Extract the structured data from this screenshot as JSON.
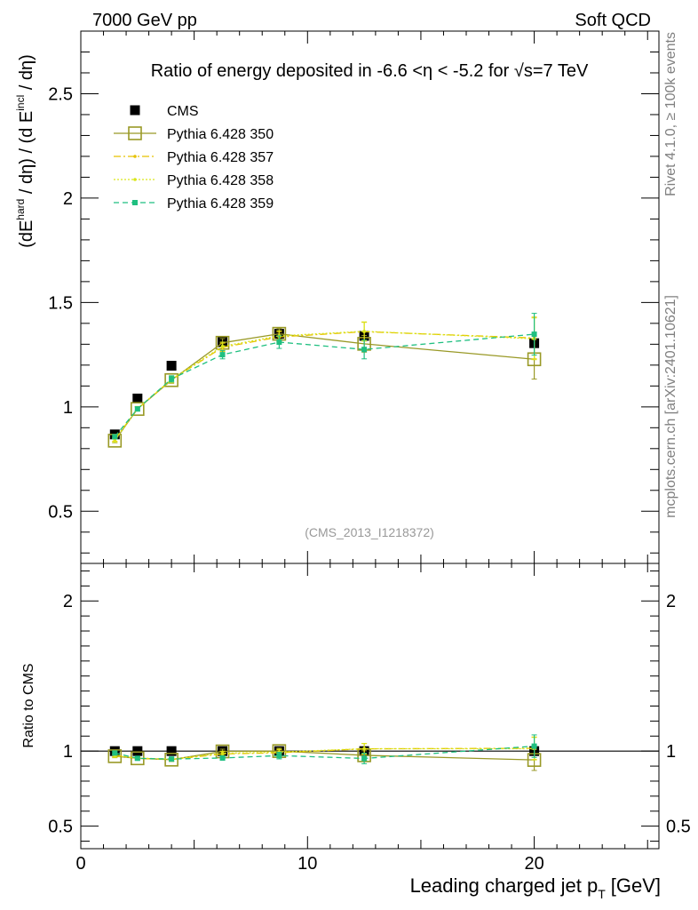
{
  "header": {
    "left": "7000 GeV pp",
    "right": "Soft QCD",
    "side_top": "Rivet 4.1.0, ≥ 100k events",
    "side_bottom": "mcplots.cern.ch [arXiv:2401.10621]"
  },
  "chart_data": {
    "type": "line",
    "title": "Ratio of energy deposited in -6.6 <η < -5.2 for √s=7 TeV",
    "watermark": "(CMS_2013_I1218372)",
    "xlabel": "Leading charged jet p_T [GeV]",
    "xlabel_main": "Leading charged jet p",
    "xlabel_sub": "T",
    "xlabel_unit": "[GeV]",
    "ylabel": "(dE^hard / dη) / (d E^incl / dη)",
    "ylabel_parts": [
      "(dE",
      "hard",
      " / dη) / (d E",
      "incl",
      " / dη)"
    ],
    "ratio_ylabel": "Ratio to CMS",
    "xlim": [
      0,
      25.5
    ],
    "ylim": [
      0.25,
      2.8
    ],
    "ratio_ylim": [
      0.35,
      2.25
    ],
    "x_ticks": [
      {
        "v": 0,
        "label": "0"
      },
      {
        "v": 10,
        "label": "10"
      },
      {
        "v": 20,
        "label": "20"
      }
    ],
    "y_ticks": [
      {
        "v": 0.5,
        "label": "0.5"
      },
      {
        "v": 1,
        "label": "1"
      },
      {
        "v": 1.5,
        "label": "1.5"
      },
      {
        "v": 2,
        "label": "2"
      },
      {
        "v": 2.5,
        "label": "2.5"
      }
    ],
    "ratio_y_ticks": [
      {
        "v": 0.5,
        "label": "0.5"
      },
      {
        "v": 1,
        "label": "1"
      },
      {
        "v": 2,
        "label": "2"
      }
    ],
    "series": [
      {
        "name": "CMS",
        "style": "data",
        "color": "#000000",
        "x": [
          1.5,
          2.5,
          4.0,
          6.25,
          8.75,
          12.5,
          20.0
        ],
        "y": [
          0.868,
          1.04,
          1.197,
          1.31,
          1.35,
          1.34,
          1.305
        ],
        "err": [
          0.01,
          0.01,
          0.01,
          0.01,
          0.01,
          0.01,
          0.01
        ],
        "ratio": [
          1,
          1,
          1,
          1,
          1,
          1,
          1
        ],
        "ratio_err": [
          0.01,
          0.01,
          0.01,
          0.01,
          0.01,
          0.01,
          0.01
        ]
      },
      {
        "name": "Pythia 6.428 350",
        "style": "open-square",
        "color": "#999926",
        "x": [
          1.5,
          2.5,
          4.0,
          6.25,
          8.75,
          12.5,
          20.0
        ],
        "y": [
          0.838,
          0.99,
          1.128,
          1.307,
          1.35,
          1.302,
          1.228
        ],
        "err": [
          0.01,
          0.01,
          0.015,
          0.02,
          0.025,
          0.04,
          0.095
        ],
        "ratio": [
          0.966,
          0.952,
          0.943,
          0.998,
          1.0,
          0.972,
          0.941
        ],
        "ratio_err": [
          0.01,
          0.01,
          0.012,
          0.015,
          0.02,
          0.03,
          0.07
        ]
      },
      {
        "name": "Pythia 6.428 357",
        "style": "dashdot-small",
        "color": "#e6c200",
        "x": [
          1.5,
          2.5,
          4.0,
          6.25,
          8.75,
          12.5,
          20.0
        ],
        "y": [
          0.845,
          0.99,
          1.13,
          1.285,
          1.335,
          1.36,
          1.33
        ],
        "err": [
          0.01,
          0.01,
          0.015,
          0.02,
          0.025,
          0.045,
          0.1
        ],
        "ratio": [
          0.973,
          0.952,
          0.944,
          0.981,
          0.989,
          1.015,
          1.019
        ],
        "ratio_err": [
          0.01,
          0.01,
          0.012,
          0.015,
          0.02,
          0.035,
          0.075
        ]
      },
      {
        "name": "Pythia 6.428 358",
        "style": "dotted-small",
        "color": "#d9e61a",
        "x": [
          1.5,
          2.5,
          4.0,
          6.25,
          8.75,
          12.5,
          20.0
        ],
        "y": [
          0.84,
          0.992,
          1.132,
          1.29,
          1.34,
          1.362,
          1.326
        ],
        "err": [
          0.01,
          0.01,
          0.015,
          0.02,
          0.025,
          0.045,
          0.1
        ],
        "ratio": [
          0.968,
          0.954,
          0.946,
          0.985,
          0.993,
          1.016,
          1.016
        ],
        "ratio_err": [
          0.01,
          0.01,
          0.012,
          0.015,
          0.02,
          0.035,
          0.075
        ]
      },
      {
        "name": "Pythia 6.428 359",
        "style": "dashed-filled",
        "color": "#1fbf80",
        "x": [
          1.5,
          2.5,
          4.0,
          6.25,
          8.75,
          12.5,
          20.0
        ],
        "y": [
          0.857,
          0.99,
          1.134,
          1.25,
          1.31,
          1.275,
          1.348
        ],
        "err": [
          0.01,
          0.01,
          0.015,
          0.02,
          0.03,
          0.045,
          0.1
        ],
        "ratio": [
          0.987,
          0.952,
          0.947,
          0.954,
          0.97,
          0.951,
          1.033
        ],
        "ratio_err": [
          0.01,
          0.01,
          0.012,
          0.015,
          0.022,
          0.035,
          0.075
        ]
      }
    ]
  }
}
